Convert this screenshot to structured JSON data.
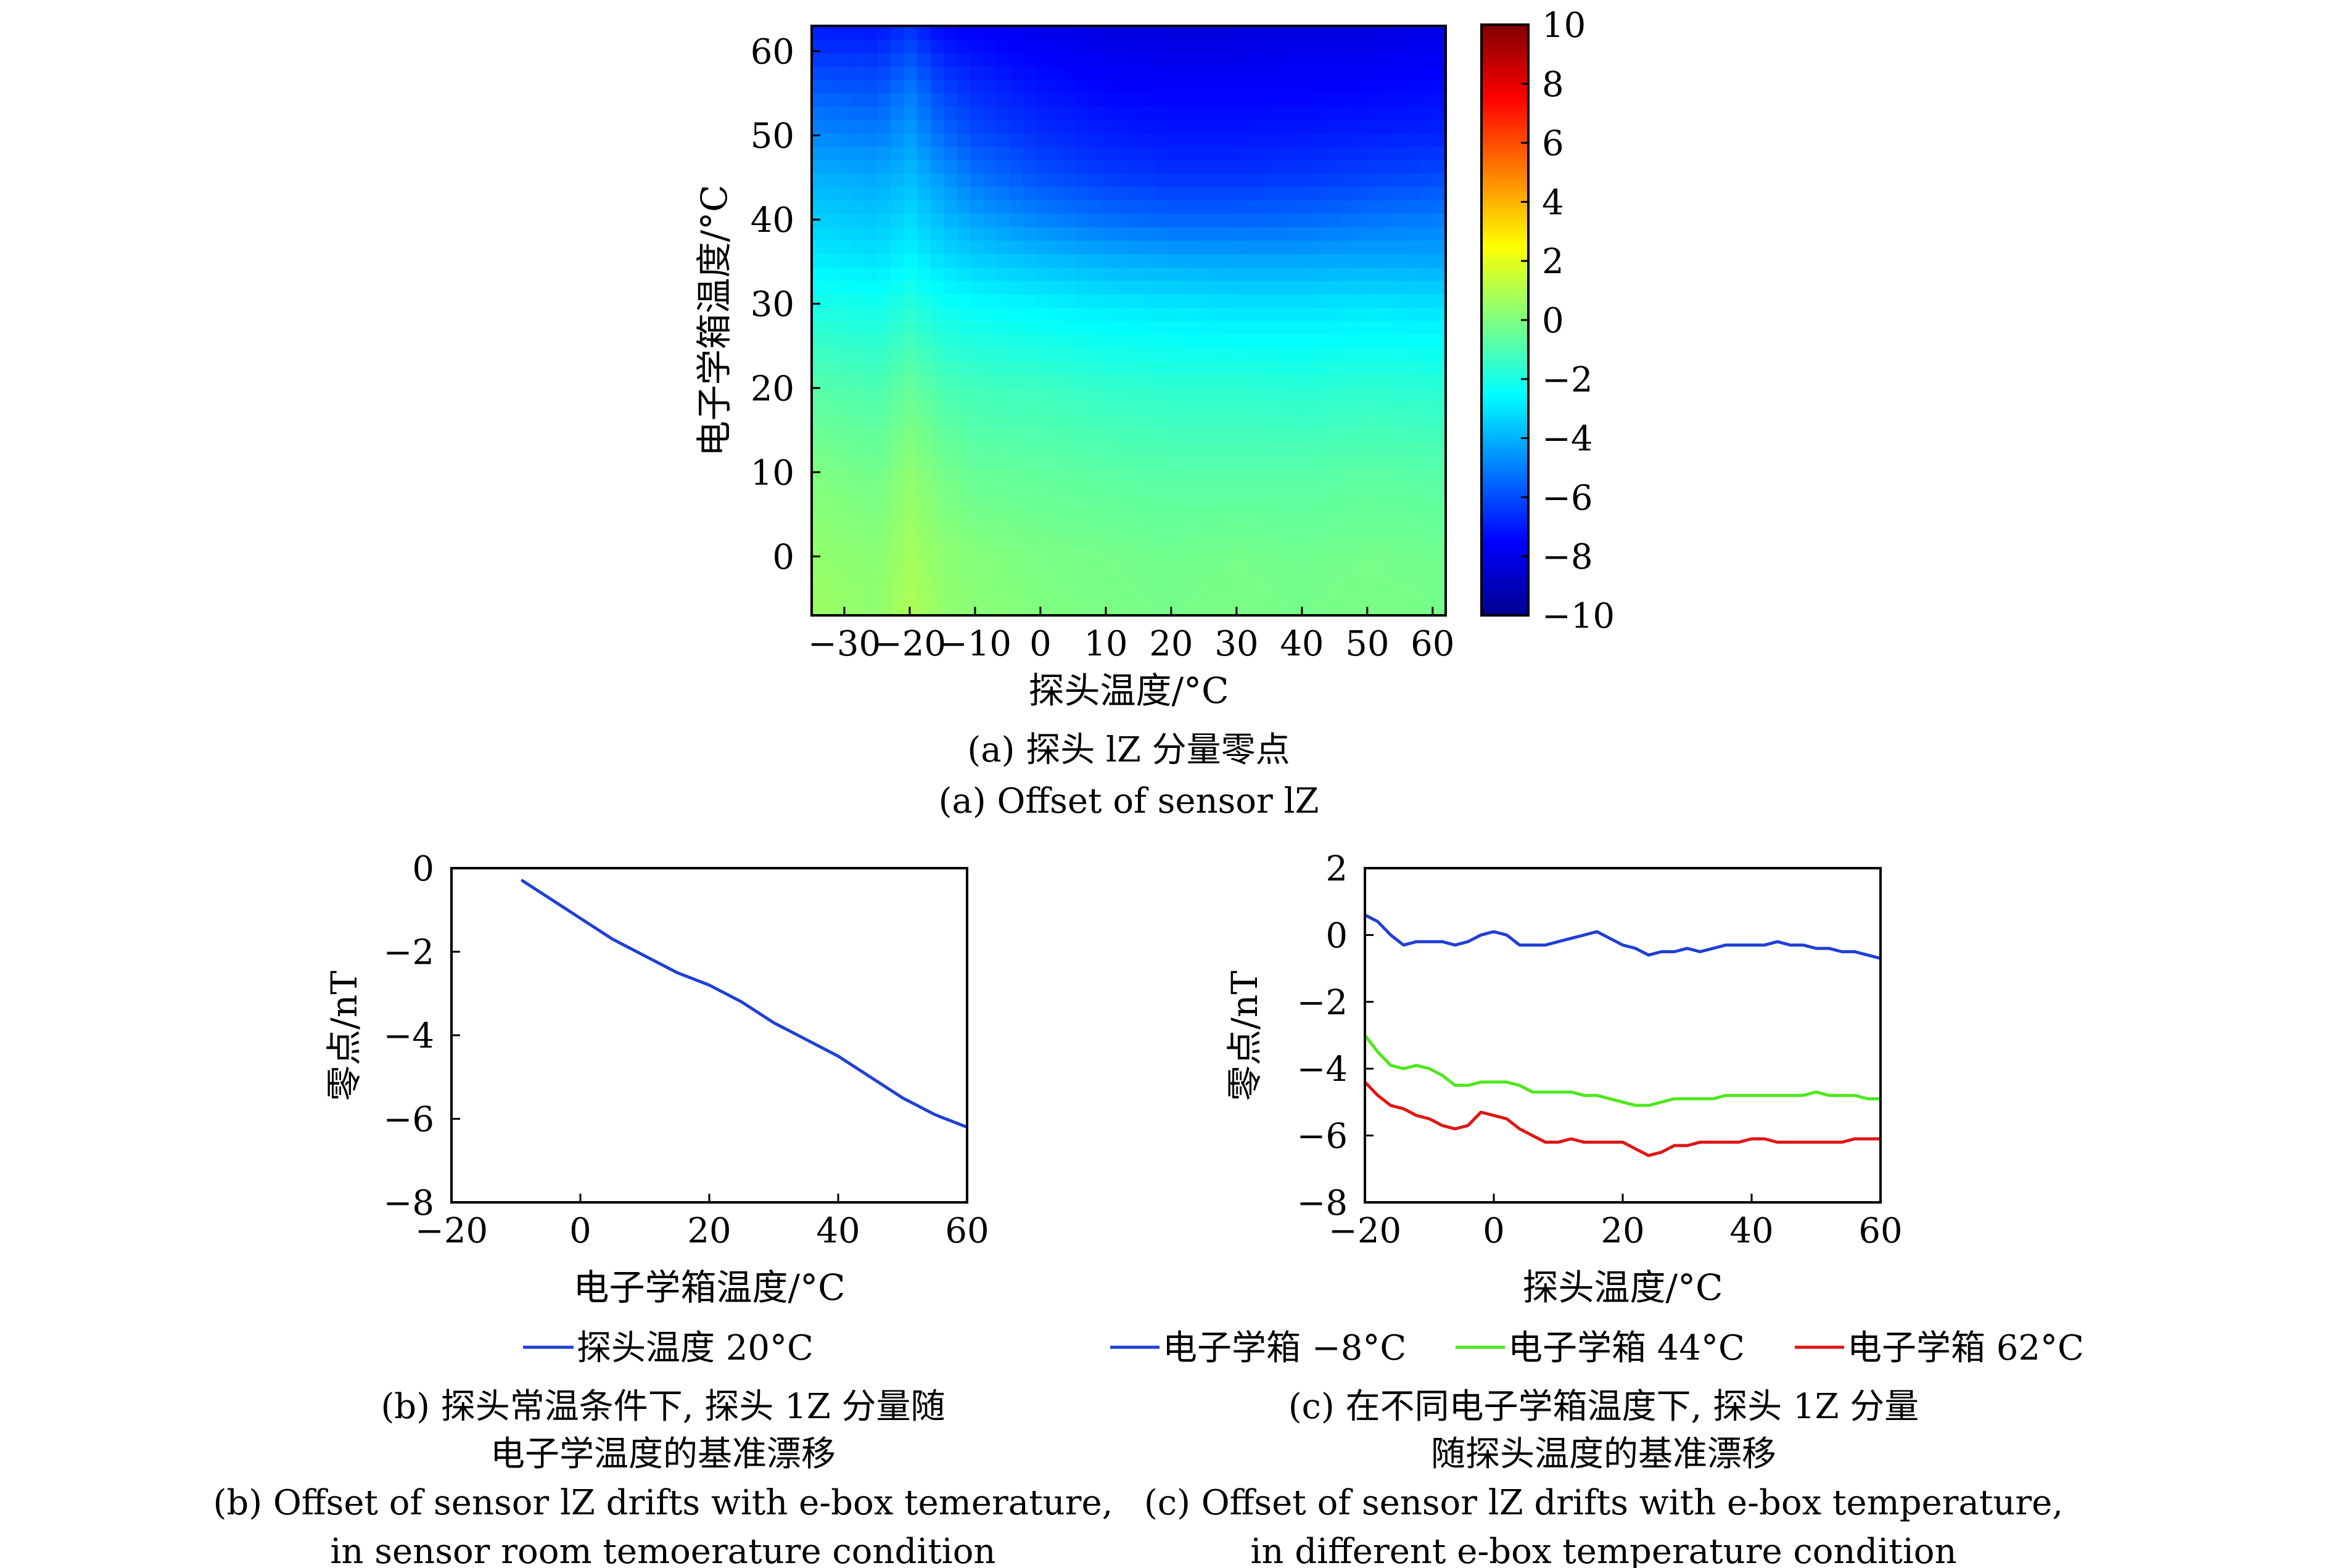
{
  "chart_data": [
    {
      "id": "a",
      "type": "heatmap",
      "title": "",
      "xlabel": "探头温度/°C",
      "ylabel": "电子学箱温度/°C",
      "xlim": [
        -35,
        62
      ],
      "ylim": [
        -7,
        63
      ],
      "xticks": [
        -30,
        -20,
        -10,
        0,
        10,
        20,
        30,
        40,
        50,
        60
      ],
      "xtick_labels": [
        "−30",
        "−20",
        "−10",
        "0",
        "10",
        "20",
        "30",
        "40",
        "50",
        "60"
      ],
      "yticks": [
        0,
        10,
        20,
        30,
        40,
        50,
        60
      ],
      "ytick_labels": [
        "0",
        "10",
        "20",
        "30",
        "40",
        "50",
        "60"
      ],
      "colorbar": {
        "range": [
          -10,
          10
        ],
        "ticks": [
          10,
          8,
          6,
          4,
          2,
          0,
          -2,
          -4,
          -6,
          -8,
          -10
        ],
        "tick_labels": [
          "10",
          "8",
          "6",
          "4",
          "2",
          "0",
          "−2",
          "−4",
          "−6",
          "−8",
          "−10"
        ],
        "colormap": "jet"
      },
      "grid_x": [
        -35,
        -25,
        -20,
        -15,
        -10,
        0,
        10,
        20,
        30,
        40,
        50,
        62
      ],
      "grid_y": [
        -7,
        0,
        10,
        20,
        30,
        35,
        40,
        45,
        50,
        55,
        60,
        63
      ],
      "grid_values": [
        [
          0.6,
          0.3,
          0.9,
          0.4,
          0.2,
          0.0,
          -0.1,
          -0.2,
          -0.1,
          -0.2,
          -0.1,
          -0.2
        ],
        [
          0.4,
          0.2,
          0.7,
          0.3,
          0.1,
          -0.1,
          -0.2,
          -0.3,
          -0.2,
          -0.3,
          -0.2,
          -0.3
        ],
        [
          0.0,
          -0.3,
          0.3,
          -0.2,
          -0.5,
          -0.6,
          -0.7,
          -0.8,
          -0.8,
          -0.8,
          -0.7,
          -0.8
        ],
        [
          -0.8,
          -1.0,
          -0.5,
          -1.0,
          -1.2,
          -1.3,
          -1.5,
          -1.6,
          -1.6,
          -1.7,
          -1.6,
          -1.7
        ],
        [
          -2.0,
          -2.2,
          -1.8,
          -2.3,
          -2.5,
          -2.7,
          -2.9,
          -3.0,
          -3.1,
          -3.1,
          -3.0,
          -3.1
        ],
        [
          -2.8,
          -3.0,
          -2.6,
          -3.1,
          -3.4,
          -3.7,
          -4.0,
          -4.1,
          -4.2,
          -4.2,
          -4.1,
          -4.2
        ],
        [
          -3.4,
          -3.6,
          -3.2,
          -3.8,
          -4.3,
          -4.9,
          -5.3,
          -5.5,
          -5.5,
          -5.4,
          -5.2,
          -5.0
        ],
        [
          -4.0,
          -4.2,
          -3.8,
          -4.5,
          -5.2,
          -5.9,
          -6.3,
          -6.5,
          -6.5,
          -6.4,
          -6.2,
          -6.0
        ],
        [
          -4.8,
          -5.0,
          -4.4,
          -5.4,
          -6.0,
          -6.6,
          -6.9,
          -7.1,
          -7.1,
          -7.0,
          -6.9,
          -6.8
        ],
        [
          -5.6,
          -5.8,
          -5.0,
          -6.1,
          -6.6,
          -7.1,
          -7.4,
          -7.5,
          -7.5,
          -7.5,
          -7.4,
          -7.3
        ],
        [
          -6.5,
          -6.6,
          -6.0,
          -6.9,
          -7.2,
          -7.6,
          -7.8,
          -7.9,
          -7.9,
          -7.8,
          -7.8,
          -7.7
        ],
        [
          -7.0,
          -7.1,
          -6.6,
          -7.4,
          -7.6,
          -7.9,
          -8.1,
          -8.2,
          -8.2,
          -8.1,
          -8.1,
          -8.0
        ]
      ],
      "caption_zh": "(a) 探头 lZ 分量零点",
      "caption_en": "(a) Offset of sensor lZ"
    },
    {
      "id": "b",
      "type": "line",
      "xlabel": "电子学箱温度/°C",
      "ylabel": "零点/nT",
      "xlim": [
        -20,
        60
      ],
      "ylim": [
        -8,
        0
      ],
      "xticks": [
        -20,
        0,
        20,
        40,
        60
      ],
      "xtick_labels": [
        "−20",
        "0",
        "20",
        "40",
        "60"
      ],
      "yticks": [
        0,
        -2,
        -4,
        -6,
        -8
      ],
      "ytick_labels": [
        "0",
        "−2",
        "−4",
        "−6",
        "−8"
      ],
      "series": [
        {
          "name": "探头温度 20°C",
          "color": "#1f3fd6",
          "x": [
            -9,
            -5,
            0,
            5,
            10,
            15,
            20,
            25,
            30,
            35,
            40,
            45,
            50,
            55,
            60
          ],
          "y": [
            -0.3,
            -0.7,
            -1.2,
            -1.7,
            -2.1,
            -2.5,
            -2.8,
            -3.2,
            -3.7,
            -4.1,
            -4.5,
            -5.0,
            -5.5,
            -5.9,
            -6.2
          ]
        }
      ],
      "caption_zh_1": "(b) 探头常温条件下, 探头 1Z 分量随",
      "caption_zh_2": "电子学温度的基准漂移",
      "caption_en_1": "(b) Offset of sensor lZ drifts with e-box temerature,",
      "caption_en_2": "in sensor room temoerature condition"
    },
    {
      "id": "c",
      "type": "line",
      "xlabel": "探头温度/°C",
      "ylabel": "零点/nT",
      "xlim": [
        -20,
        60
      ],
      "ylim": [
        -8,
        2
      ],
      "xticks": [
        -20,
        0,
        20,
        40,
        60
      ],
      "xtick_labels": [
        "−20",
        "0",
        "20",
        "40",
        "60"
      ],
      "yticks": [
        2,
        0,
        -2,
        -4,
        -6,
        -8
      ],
      "ytick_labels": [
        "2",
        "0",
        "−2",
        "−4",
        "−6",
        "−8"
      ],
      "series": [
        {
          "name": "电子学箱 −8°C",
          "color": "#1f3fd6",
          "x": [
            -20,
            -18,
            -16,
            -14,
            -12,
            -10,
            -8,
            -6,
            -4,
            -2,
            0,
            2,
            4,
            6,
            8,
            10,
            12,
            14,
            16,
            18,
            20,
            22,
            24,
            26,
            28,
            30,
            32,
            34,
            36,
            38,
            40,
            42,
            44,
            46,
            48,
            50,
            52,
            54,
            56,
            58,
            60
          ],
          "y": [
            0.6,
            0.4,
            0.0,
            -0.3,
            -0.2,
            -0.2,
            -0.2,
            -0.3,
            -0.2,
            0.0,
            0.1,
            0.0,
            -0.3,
            -0.3,
            -0.3,
            -0.2,
            -0.1,
            0.0,
            0.1,
            -0.1,
            -0.3,
            -0.4,
            -0.6,
            -0.5,
            -0.5,
            -0.4,
            -0.5,
            -0.4,
            -0.3,
            -0.3,
            -0.3,
            -0.3,
            -0.2,
            -0.3,
            -0.3,
            -0.4,
            -0.4,
            -0.5,
            -0.5,
            -0.6,
            -0.7
          ]
        },
        {
          "name": "电子学箱 44°C",
          "color": "#4ee81c",
          "x": [
            -20,
            -18,
            -16,
            -14,
            -12,
            -10,
            -8,
            -6,
            -4,
            -2,
            0,
            2,
            4,
            6,
            8,
            10,
            12,
            14,
            16,
            18,
            20,
            22,
            24,
            26,
            28,
            30,
            32,
            34,
            36,
            38,
            40,
            42,
            44,
            46,
            48,
            50,
            52,
            54,
            56,
            58,
            60
          ],
          "y": [
            -3.0,
            -3.5,
            -3.9,
            -4.0,
            -3.9,
            -4.0,
            -4.2,
            -4.5,
            -4.5,
            -4.4,
            -4.4,
            -4.4,
            -4.5,
            -4.7,
            -4.7,
            -4.7,
            -4.7,
            -4.8,
            -4.8,
            -4.9,
            -5.0,
            -5.1,
            -5.1,
            -5.0,
            -4.9,
            -4.9,
            -4.9,
            -4.9,
            -4.8,
            -4.8,
            -4.8,
            -4.8,
            -4.8,
            -4.8,
            -4.8,
            -4.7,
            -4.8,
            -4.8,
            -4.8,
            -4.9,
            -4.9
          ]
        },
        {
          "name": "电子学箱 62°C",
          "color": "#e01515",
          "x": [
            -20,
            -18,
            -16,
            -14,
            -12,
            -10,
            -8,
            -6,
            -4,
            -2,
            0,
            2,
            4,
            6,
            8,
            10,
            12,
            14,
            16,
            18,
            20,
            22,
            24,
            26,
            28,
            30,
            32,
            34,
            36,
            38,
            40,
            42,
            44,
            46,
            48,
            50,
            52,
            54,
            56,
            58,
            60
          ],
          "y": [
            -4.4,
            -4.8,
            -5.1,
            -5.2,
            -5.4,
            -5.5,
            -5.7,
            -5.8,
            -5.7,
            -5.3,
            -5.4,
            -5.5,
            -5.8,
            -6.0,
            -6.2,
            -6.2,
            -6.1,
            -6.2,
            -6.2,
            -6.2,
            -6.2,
            -6.4,
            -6.6,
            -6.5,
            -6.3,
            -6.3,
            -6.2,
            -6.2,
            -6.2,
            -6.2,
            -6.1,
            -6.1,
            -6.2,
            -6.2,
            -6.2,
            -6.2,
            -6.2,
            -6.2,
            -6.1,
            -6.1,
            -6.1
          ]
        }
      ],
      "caption_zh_1": "(c) 在不同电子学箱温度下, 探头 1Z 分量",
      "caption_zh_2": "随探头温度的基准漂移",
      "caption_en_1": "(c) Offset of sensor lZ drifts with e-box temperature,",
      "caption_en_2": "in different e-box temperature condition"
    }
  ]
}
